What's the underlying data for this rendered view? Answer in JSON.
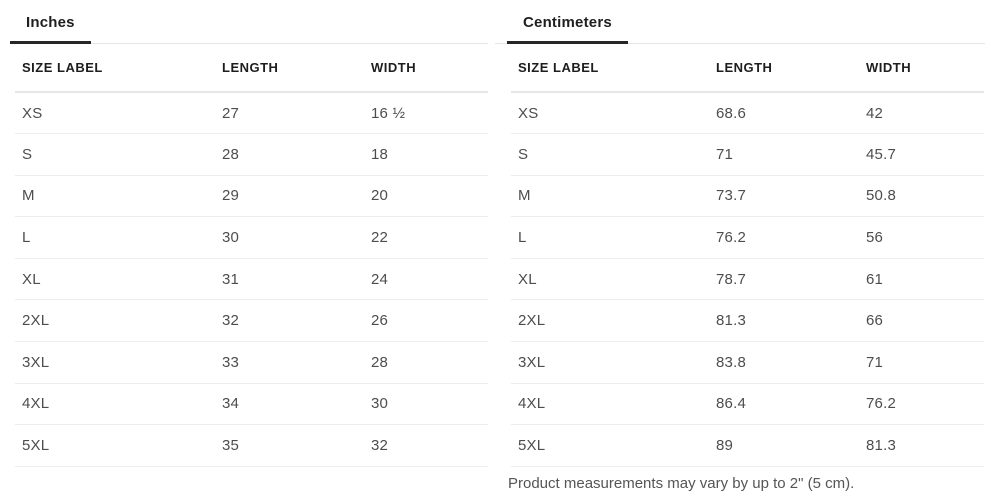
{
  "panels": [
    {
      "tab": "Inches",
      "columns": [
        "SIZE LABEL",
        "LENGTH",
        "WIDTH"
      ],
      "rows": [
        [
          "XS",
          "27",
          "16 ½"
        ],
        [
          "S",
          "28",
          "18"
        ],
        [
          "M",
          "29",
          "20"
        ],
        [
          "L",
          "30",
          "22"
        ],
        [
          "XL",
          "31",
          "24"
        ],
        [
          "2XL",
          "32",
          "26"
        ],
        [
          "3XL",
          "33",
          "28"
        ],
        [
          "4XL",
          "34",
          "30"
        ],
        [
          "5XL",
          "35",
          "32"
        ]
      ]
    },
    {
      "tab": "Centimeters",
      "columns": [
        "SIZE LABEL",
        "LENGTH",
        "WIDTH"
      ],
      "rows": [
        [
          "XS",
          "68.6",
          "42"
        ],
        [
          "S",
          "71",
          "45.7"
        ],
        [
          "M",
          "73.7",
          "50.8"
        ],
        [
          "L",
          "76.2",
          "56"
        ],
        [
          "XL",
          "78.7",
          "61"
        ],
        [
          "2XL",
          "81.3",
          "66"
        ],
        [
          "3XL",
          "83.8",
          "71"
        ],
        [
          "4XL",
          "86.4",
          "76.2"
        ],
        [
          "5XL",
          "89",
          "81.3"
        ]
      ]
    }
  ],
  "footnote": "Product measurements may vary by up to 2\" (5 cm).",
  "colors": {
    "active_tab_underline": "#262626",
    "tab_text": "#1f1f1f",
    "header_text": "#1e1e1e",
    "cell_text": "#4d4d4d",
    "row_divider": "#ededed"
  }
}
